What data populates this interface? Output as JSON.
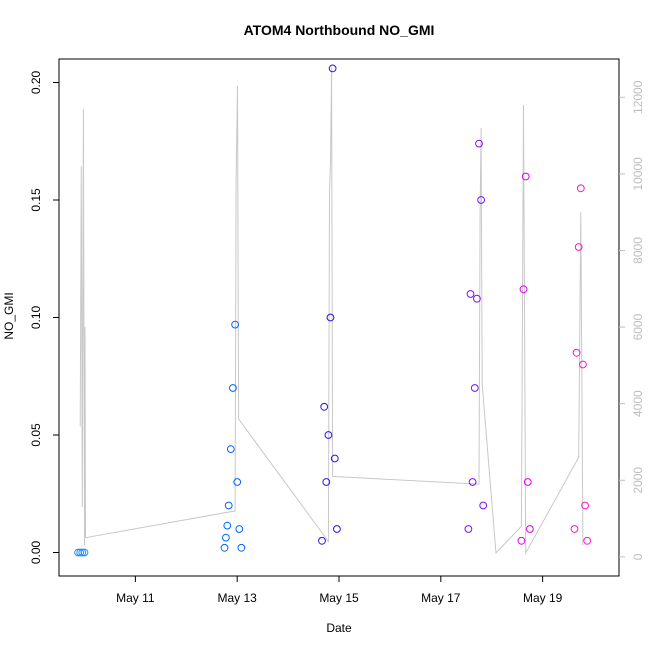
{
  "chart_data": {
    "type": "scatter",
    "title": "ATOM4 Northbound NO_GMI",
    "xlabel": "Date",
    "ylabel": "NO_GMI",
    "x_range_days": [
      "2016-05-09T12:00",
      "2016-05-20T12:00"
    ],
    "x_ticks": [
      {
        "date": "2016-05-11",
        "label": "May 11"
      },
      {
        "date": "2016-05-13",
        "label": "May 13"
      },
      {
        "date": "2016-05-15",
        "label": "May 15"
      },
      {
        "date": "2016-05-17",
        "label": "May 17"
      },
      {
        "date": "2016-05-19",
        "label": "May 19"
      }
    ],
    "ylim": [
      -0.01,
      0.21
    ],
    "y_ticks": [
      {
        "value": 0.0,
        "label": "0.00"
      },
      {
        "value": 0.05,
        "label": "0.05"
      },
      {
        "value": 0.1,
        "label": "0.10"
      },
      {
        "value": 0.15,
        "label": "0.15"
      },
      {
        "value": 0.2,
        "label": "0.20"
      }
    ],
    "y2lim": [
      -500,
      13000
    ],
    "y2_ticks": [
      {
        "value": 0,
        "label": "0"
      },
      {
        "value": 2000,
        "label": "2000"
      },
      {
        "value": 4000,
        "label": "4000"
      },
      {
        "value": 6000,
        "label": "6000"
      },
      {
        "value": 8000,
        "label": "8000"
      },
      {
        "value": 10000,
        "label": "10000"
      },
      {
        "value": 12000,
        "label": "12000"
      }
    ],
    "colors": {
      "altitude_line": "#c8c8c8",
      "right_axis": "#c0c0c0",
      "series": [
        "#1e90ff",
        "#0064ff",
        "#2814f0",
        "#7814f0",
        "#dc00f0",
        "#ff14c8"
      ]
    },
    "altitude_profile": [
      [
        "2016-05-09T22:00",
        3400
      ],
      [
        "2016-05-09T22:30",
        10200
      ],
      [
        "2016-05-09T23:00",
        1300
      ],
      [
        "2016-05-09T23:30",
        11700
      ],
      [
        "2016-05-10T00:00",
        300
      ],
      [
        "2016-05-10T00:15",
        6000
      ],
      [
        "2016-05-10T00:30",
        500
      ],
      [
        "2016-05-12T23:00",
        1200
      ],
      [
        "2016-05-12T23:30",
        9800
      ],
      [
        "2016-05-13T00:10",
        12300
      ],
      [
        "2016-05-13T00:40",
        3600
      ],
      [
        "2016-05-14T19:00",
        400
      ],
      [
        "2016-05-14T19:30",
        9500
      ],
      [
        "2016-05-14T20:00",
        10300
      ],
      [
        "2016-05-14T20:30",
        12800
      ],
      [
        "2016-05-14T21:00",
        2100
      ],
      [
        "2016-05-17T18:00",
        1900
      ],
      [
        "2016-05-17T18:30",
        9000
      ],
      [
        "2016-05-17T19:00",
        11200
      ],
      [
        "2016-05-17T19:30",
        4500
      ],
      [
        "2016-05-18T02:00",
        100
      ],
      [
        "2016-05-18T14:00",
        800
      ],
      [
        "2016-05-18T15:00",
        11800
      ],
      [
        "2016-05-18T16:00",
        100
      ],
      [
        "2016-05-19T17:00",
        2600
      ],
      [
        "2016-05-19T18:00",
        9000
      ],
      [
        "2016-05-19T19:00",
        300
      ]
    ],
    "series": [
      {
        "values_summary": [
          [
            "2016-05-09T21:00",
            0.0
          ],
          [
            "2016-05-09T22:00",
            0.0
          ],
          [
            "2016-05-09T23:00",
            0.0
          ],
          [
            "2016-05-10T00:00",
            0.0
          ]
        ]
      },
      {
        "values_summary": [
          [
            "2016-05-12T18:00",
            0.002
          ],
          [
            "2016-05-12T20:00",
            0.02
          ],
          [
            "2016-05-12T21:00",
            0.044
          ],
          [
            "2016-05-12T22:00",
            0.07
          ],
          [
            "2016-05-12T23:00",
            0.097
          ],
          [
            "2016-05-13T00:00",
            0.03
          ],
          [
            "2016-05-13T01:00",
            0.01
          ],
          [
            "2016-05-13T02:00",
            0.002
          ]
        ]
      },
      {
        "values_summary": [
          [
            "2016-05-14T16:00",
            0.005
          ],
          [
            "2016-05-14T17:00",
            0.062
          ],
          [
            "2016-05-14T18:00",
            0.03
          ],
          [
            "2016-05-14T19:00",
            0.05
          ],
          [
            "2016-05-14T20:00",
            0.1
          ],
          [
            "2016-05-14T21:00",
            0.206
          ],
          [
            "2016-05-14T22:00",
            0.04
          ],
          [
            "2016-05-14T23:00",
            0.01
          ]
        ]
      },
      {
        "values_summary": [
          [
            "2016-05-17T13:00",
            0.01
          ],
          [
            "2016-05-17T14:00",
            0.11
          ],
          [
            "2016-05-17T15:00",
            0.03
          ],
          [
            "2016-05-17T16:00",
            0.07
          ],
          [
            "2016-05-17T17:00",
            0.108
          ],
          [
            "2016-05-17T18:00",
            0.174
          ],
          [
            "2016-05-17T19:00",
            0.15
          ],
          [
            "2016-05-17T20:00",
            0.02
          ]
        ]
      },
      {
        "values_summary": [
          [
            "2016-05-18T14:00",
            0.005
          ],
          [
            "2016-05-18T15:00",
            0.112
          ],
          [
            "2016-05-18T16:00",
            0.16
          ],
          [
            "2016-05-18T17:00",
            0.03
          ],
          [
            "2016-05-18T18:00",
            0.01
          ]
        ]
      },
      {
        "values_summary": [
          [
            "2016-05-19T15:00",
            0.01
          ],
          [
            "2016-05-19T16:00",
            0.085
          ],
          [
            "2016-05-19T17:00",
            0.13
          ],
          [
            "2016-05-19T18:00",
            0.155
          ],
          [
            "2016-05-19T19:00",
            0.08
          ],
          [
            "2016-05-19T20:00",
            0.02
          ],
          [
            "2016-05-19T21:00",
            0.005
          ]
        ]
      }
    ]
  }
}
